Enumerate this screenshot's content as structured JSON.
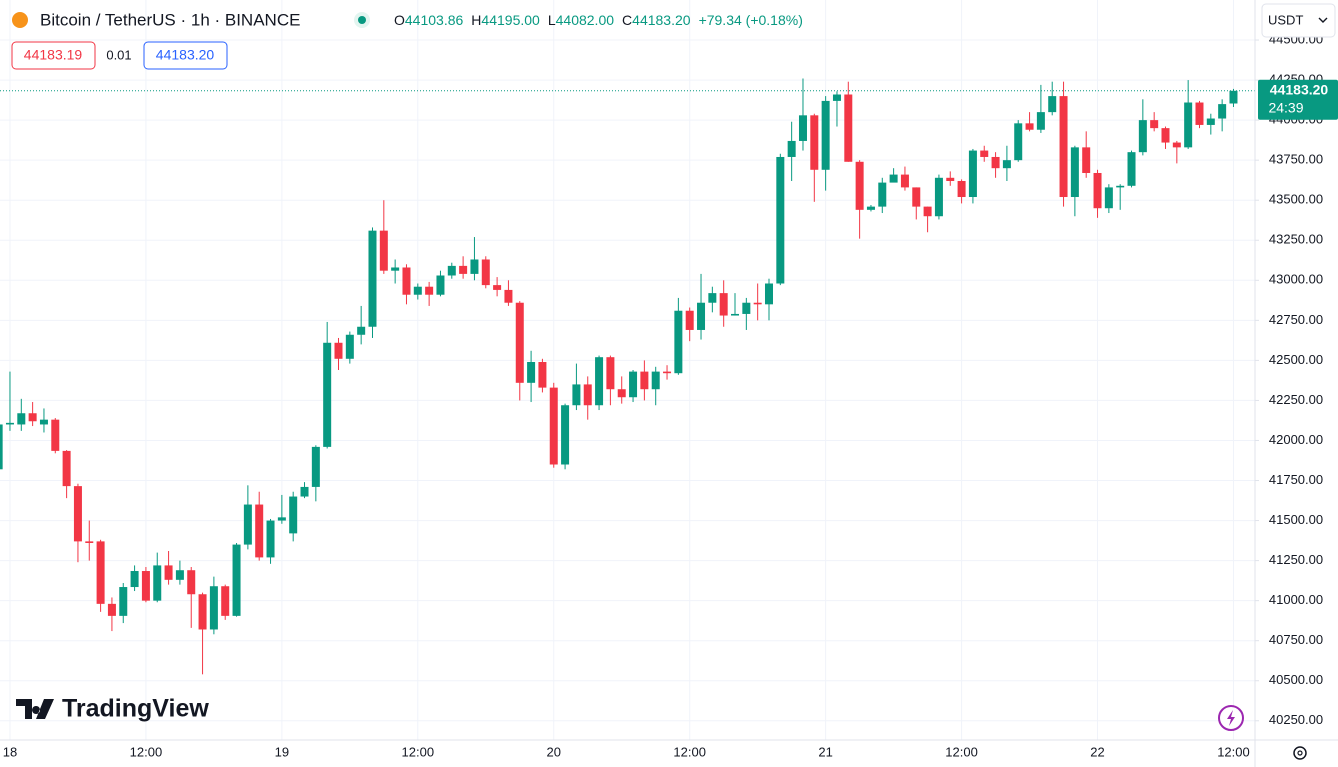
{
  "header": {
    "symbol": "Bitcoin / TetherUS · 1h · BINANCE",
    "ohlc": [
      {
        "label": "O",
        "value": "44103.86"
      },
      {
        "label": "H",
        "value": "44195.00"
      },
      {
        "label": "L",
        "value": "44082.00"
      },
      {
        "label": "C",
        "value": "44183.20"
      }
    ],
    "change": "+79.34 (+0.18%)",
    "bid": "44183.19",
    "spread": "0.01",
    "ask": "44183.20",
    "currency": "USDT",
    "logo": "TradingView"
  },
  "price_tag": {
    "price": "44183.20",
    "countdown": "24:39"
  },
  "chart_data": {
    "type": "candlestick",
    "up_color": "#089981",
    "down_color": "#f23645",
    "x": [
      -1,
      0,
      1,
      2,
      3,
      4,
      5,
      6,
      7,
      8,
      9,
      10,
      11,
      12,
      13,
      14,
      15,
      16,
      17,
      18,
      19,
      20,
      21,
      22,
      23,
      24,
      25,
      26,
      27,
      28,
      29,
      30,
      31,
      32,
      33,
      34,
      35,
      36,
      37,
      38,
      39,
      40,
      41,
      42,
      43,
      44,
      45,
      46,
      47,
      48,
      49,
      50,
      51,
      52,
      53,
      54,
      55,
      56,
      57,
      58,
      59,
      60,
      61,
      62,
      63,
      64,
      65,
      66,
      67,
      68,
      69,
      70,
      71,
      72,
      73,
      74,
      75,
      76,
      77,
      78,
      79,
      80,
      81,
      82,
      83,
      84,
      85,
      86,
      87,
      88,
      89,
      90,
      91,
      92,
      93,
      94,
      95,
      96,
      97,
      98,
      99,
      100,
      101,
      102,
      103,
      104,
      105,
      106,
      107,
      108
    ],
    "open": [
      41820,
      42100,
      42100,
      42170,
      42100,
      42130,
      41935,
      41715,
      41370,
      41370,
      40980,
      40905,
      41085,
      41185,
      41000,
      41220,
      41130,
      41190,
      41040,
      40820,
      41090,
      40905,
      41350,
      41600,
      41270,
      41500,
      41420,
      41650,
      41710,
      41960,
      42610,
      42510,
      42660,
      42710,
      43310,
      43060,
      43080,
      42910,
      42960,
      42910,
      43030,
      43090,
      43040,
      43130,
      42970,
      42940,
      42860,
      42360,
      42490,
      42330,
      41850,
      42220,
      42350,
      42220,
      42520,
      42320,
      42270,
      42430,
      42320,
      42430,
      42420,
      42810,
      42690,
      42860,
      42920,
      42780,
      42790,
      42860,
      42850,
      42980,
      43770,
      43870,
      44030,
      43690,
      44120,
      44160,
      43740,
      43440,
      43460,
      43610,
      43660,
      43580,
      43460,
      43400,
      43640,
      43620,
      43520,
      43810,
      43770,
      43700,
      43750,
      43980,
      43940,
      44050,
      44150,
      43520,
      43830,
      43670,
      43450,
      43580,
      43590,
      43800,
      44000,
      43950,
      43860,
      43830,
      44110,
      43970,
      44010,
      44103.86
    ],
    "high": [
      42120,
      42430,
      42260,
      42240,
      42200,
      42140,
      41940,
      41730,
      41500,
      41380,
      41020,
      41110,
      41220,
      41210,
      41300,
      41310,
      41250,
      41210,
      41050,
      41150,
      41100,
      41360,
      41720,
      41680,
      41510,
      41660,
      41680,
      41740,
      41970,
      42740,
      42640,
      42680,
      42840,
      43330,
      43500,
      43130,
      43100,
      42980,
      42990,
      43060,
      43110,
      43150,
      43270,
      43150,
      43020,
      43000,
      42870,
      42560,
      42510,
      42360,
      42230,
      42480,
      42400,
      42530,
      42530,
      42400,
      42440,
      42500,
      42460,
      42470,
      42890,
      42830,
      43040,
      42960,
      43000,
      42920,
      42890,
      42980,
      43010,
      43790,
      43990,
      44260,
      44040,
      44150,
      44180,
      44240,
      43750,
      43470,
      43640,
      43700,
      43710,
      43580,
      43460,
      43660,
      43680,
      43630,
      43820,
      43840,
      43800,
      43840,
      44000,
      44050,
      44220,
      44240,
      44240,
      43840,
      43930,
      43690,
      43600,
      43600,
      43810,
      44130,
      44050,
      43960,
      43870,
      44250,
      44120,
      44040,
      44130,
      44195
    ],
    "low": [
      41800,
      42060,
      42060,
      42090,
      42050,
      41920,
      41640,
      41240,
      41250,
      40930,
      40810,
      40860,
      41060,
      40990,
      40990,
      41100,
      41100,
      40830,
      40540,
      40790,
      40880,
      40900,
      41320,
      41250,
      41230,
      41480,
      41370,
      41640,
      41620,
      41950,
      42440,
      42480,
      42600,
      42640,
      43040,
      42980,
      42850,
      42880,
      42840,
      42900,
      43010,
      43010,
      43000,
      42950,
      42900,
      42840,
      42250,
      42240,
      42300,
      41830,
      41820,
      42190,
      42130,
      42190,
      42220,
      42230,
      42240,
      42250,
      42220,
      42380,
      42410,
      42620,
      42630,
      42800,
      42710,
      42780,
      42690,
      42750,
      42750,
      42970,
      43620,
      43810,
      43490,
      43560,
      43960,
      43740,
      43260,
      43430,
      43420,
      43620,
      43560,
      43380,
      43300,
      43380,
      43590,
      43480,
      43480,
      43740,
      43640,
      43620,
      43740,
      43930,
      43920,
      44030,
      43460,
      43400,
      43640,
      43390,
      43420,
      43440,
      43580,
      43780,
      43930,
      43820,
      43730,
      43820,
      43950,
      43910,
      43930,
      44082
    ],
    "close": [
      42100,
      42110,
      42170,
      42120,
      42130,
      41935,
      41715,
      41370,
      41360,
      40980,
      40905,
      41085,
      41185,
      41000,
      41220,
      41130,
      41190,
      41040,
      40820,
      41090,
      40905,
      41350,
      41600,
      41270,
      41500,
      41520,
      41650,
      41710,
      41960,
      42610,
      42510,
      42660,
      42710,
      43310,
      43060,
      43080,
      42910,
      42960,
      42910,
      43030,
      43090,
      43040,
      43130,
      42970,
      42940,
      42860,
      42360,
      42490,
      42330,
      41850,
      42220,
      42350,
      42220,
      42520,
      42320,
      42270,
      42430,
      42320,
      42430,
      42420,
      42810,
      42690,
      42860,
      42920,
      42780,
      42790,
      42860,
      42850,
      42980,
      43770,
      43870,
      44030,
      43690,
      44120,
      44160,
      43740,
      43440,
      43460,
      43610,
      43660,
      43580,
      43460,
      43400,
      43640,
      43620,
      43520,
      43810,
      43770,
      43700,
      43750,
      43980,
      43940,
      44050,
      44150,
      43520,
      43830,
      43670,
      43450,
      43580,
      43590,
      43800,
      44000,
      43950,
      43860,
      43830,
      44110,
      43970,
      44010,
      44100,
      44183.2
    ],
    "xlim": [
      -0.88,
      109.9
    ],
    "xticks": [
      {
        "value": 0,
        "label": "18"
      },
      {
        "value": 12,
        "label": "12:00"
      },
      {
        "value": 24,
        "label": "19"
      },
      {
        "value": 36,
        "label": "12:00"
      },
      {
        "value": 48,
        "label": "20"
      },
      {
        "value": 60,
        "label": "12:00"
      },
      {
        "value": 72,
        "label": "21"
      },
      {
        "value": 84,
        "label": "12:00"
      },
      {
        "value": 96,
        "label": "22"
      },
      {
        "value": 108,
        "label": "12:00"
      }
    ],
    "ylim": [
      40130,
      44750
    ],
    "yticks": [
      {
        "value": 40250,
        "label": "40250.00"
      },
      {
        "value": 40500,
        "label": "40500.00"
      },
      {
        "value": 40750,
        "label": "40750.00"
      },
      {
        "value": 41000,
        "label": "41000.00"
      },
      {
        "value": 41250,
        "label": "41250.00"
      },
      {
        "value": 41500,
        "label": "41500.00"
      },
      {
        "value": 41750,
        "label": "41750.00"
      },
      {
        "value": 42000,
        "label": "42000.00"
      },
      {
        "value": 42250,
        "label": "42250.00"
      },
      {
        "value": 42500,
        "label": "42500.00"
      },
      {
        "value": 42750,
        "label": "42750.00"
      },
      {
        "value": 43000,
        "label": "43000.00"
      },
      {
        "value": 43250,
        "label": "43250.00"
      },
      {
        "value": 43500,
        "label": "43500.00"
      },
      {
        "value": 43750,
        "label": "43750.00"
      },
      {
        "value": 44000,
        "label": "44000.00"
      },
      {
        "value": 44250,
        "label": "44250.00"
      },
      {
        "value": 44500,
        "label": "44500.00"
      }
    ],
    "grid": true
  }
}
